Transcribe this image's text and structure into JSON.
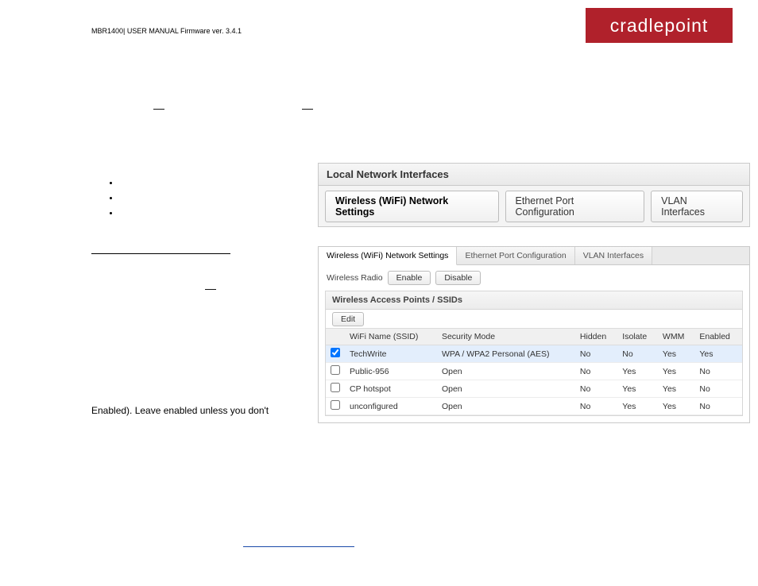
{
  "header": {
    "firmware_text": "MBR1400| USER MANUAL Firmware ver. 3.4.1",
    "logo_text": "cradlepoint",
    "logo_bg": "#b0212b"
  },
  "panel_large": {
    "title": "Local Network Interfaces",
    "tabs": [
      {
        "label": "Wireless (WiFi) Network Settings",
        "active": true
      },
      {
        "label": "Ethernet Port Configuration",
        "active": false
      },
      {
        "label": "VLAN Interfaces",
        "active": false
      }
    ]
  },
  "panel_small": {
    "tabs": [
      {
        "label": "Wireless (WiFi) Network Settings",
        "active": true
      },
      {
        "label": "Ethernet Port Configuration",
        "active": false
      },
      {
        "label": "VLAN Interfaces",
        "active": false
      }
    ],
    "radio_label": "Wireless Radio",
    "enable_label": "Enable",
    "disable_label": "Disable",
    "ap_title": "Wireless Access Points / SSIDs",
    "edit_label": "Edit",
    "columns": [
      "",
      "WiFi Name (SSID)",
      "Security Mode",
      "Hidden",
      "Isolate",
      "WMM",
      "Enabled"
    ],
    "rows": [
      {
        "checked": true,
        "selected": true,
        "name": "TechWrite",
        "mode": "WPA / WPA2 Personal (AES)",
        "hidden": "No",
        "isolate": "No",
        "wmm": "Yes",
        "enabled": "Yes"
      },
      {
        "checked": false,
        "selected": false,
        "name": "Public-956",
        "mode": "Open",
        "hidden": "No",
        "isolate": "Yes",
        "wmm": "Yes",
        "enabled": "No"
      },
      {
        "checked": false,
        "selected": false,
        "name": "CP hotspot",
        "mode": "Open",
        "hidden": "No",
        "isolate": "Yes",
        "wmm": "Yes",
        "enabled": "No"
      },
      {
        "checked": false,
        "selected": false,
        "name": "unconfigured",
        "mode": "Open",
        "hidden": "No",
        "isolate": "Yes",
        "wmm": "Yes",
        "enabled": "No"
      }
    ]
  },
  "doc": {
    "stray_body_line": "Enabled).  Leave  enabled  unless  you  don't"
  }
}
